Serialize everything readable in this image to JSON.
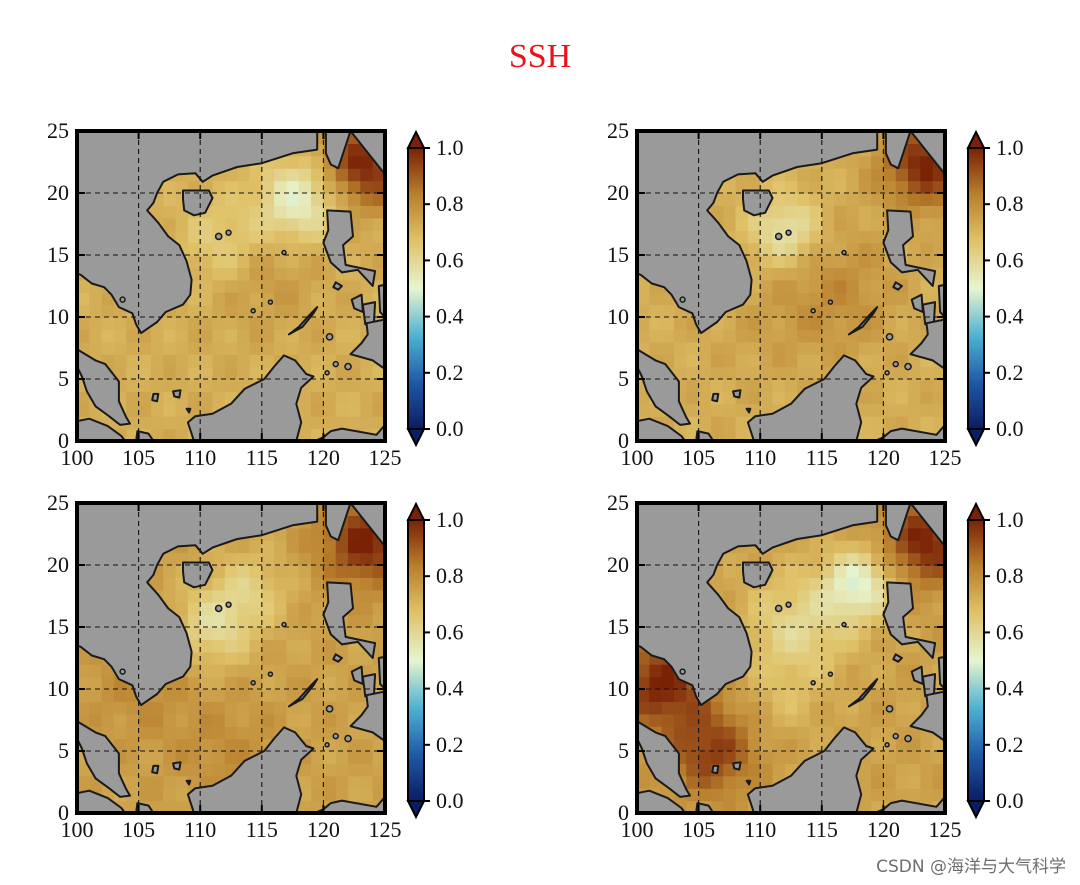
{
  "title": "SSH",
  "watermark": "CSDN @海洋与大气科学",
  "colors": {
    "title": "#e8141c",
    "land": "#9a9a9a",
    "coast": "#1a1a1a",
    "cmap": [
      "#0b1d63",
      "#1f5aa6",
      "#4fb3d3",
      "#e7f4cf",
      "#e0c36a",
      "#b9802e",
      "#7a2106"
    ]
  },
  "chart_data": [
    {
      "type": "heatmap",
      "panel": "top-left",
      "x_ticks": [
        "100",
        "105",
        "110",
        "115",
        "120",
        "125"
      ],
      "y_ticks": [
        "0",
        "5",
        "10",
        "15",
        "20",
        "25"
      ],
      "xlim": [
        100,
        125
      ],
      "ylim": [
        0,
        25
      ],
      "grid": true,
      "colorbar": {
        "ticks": [
          "0.0",
          "0.2",
          "0.4",
          "0.6",
          "0.8",
          "1.0"
        ],
        "range": [
          0,
          1
        ],
        "extend": "both"
      },
      "field_features": [
        {
          "lon": 118,
          "lat": 19.5,
          "value": 0.5,
          "sigma": 2.2
        },
        {
          "lon": 112,
          "lat": 16,
          "value": 0.62,
          "sigma": 2.5
        },
        {
          "lon": 123.5,
          "lat": 22.5,
          "value": 1.0,
          "sigma": 2.5
        },
        {
          "lon": 115,
          "lat": 13.5,
          "value": 0.78,
          "sigma": 3.0
        },
        {
          "lon": 108,
          "lat": 5,
          "value": 0.72,
          "sigma": 3.5
        }
      ],
      "base_value": 0.72
    },
    {
      "type": "heatmap",
      "panel": "top-right",
      "x_ticks": [
        "100",
        "105",
        "110",
        "115",
        "120",
        "125"
      ],
      "y_ticks": [
        "0",
        "5",
        "10",
        "15",
        "20",
        "25"
      ],
      "xlim": [
        100,
        125
      ],
      "ylim": [
        0,
        25
      ],
      "grid": true,
      "colorbar": {
        "ticks": [
          "0.0",
          "0.2",
          "0.4",
          "0.6",
          "0.8",
          "1.0"
        ],
        "range": [
          0,
          1
        ],
        "extend": "both"
      },
      "field_features": [
        {
          "lon": 112,
          "lat": 17,
          "value": 0.55,
          "sigma": 2.0
        },
        {
          "lon": 123.5,
          "lat": 22.5,
          "value": 1.0,
          "sigma": 2.5
        },
        {
          "lon": 116,
          "lat": 12,
          "value": 0.8,
          "sigma": 3.5
        },
        {
          "lon": 110,
          "lat": 9,
          "value": 0.74,
          "sigma": 3.0
        }
      ],
      "base_value": 0.72
    },
    {
      "type": "heatmap",
      "panel": "bottom-left",
      "x_ticks": [
        "100",
        "105",
        "110",
        "115",
        "120",
        "125"
      ],
      "y_ticks": [
        "0",
        "5",
        "10",
        "15",
        "20",
        "25"
      ],
      "xlim": [
        100,
        125
      ],
      "ylim": [
        0,
        25
      ],
      "grid": true,
      "colorbar": {
        "ticks": [
          "0.0",
          "0.2",
          "0.4",
          "0.6",
          "0.8",
          "1.0"
        ],
        "range": [
          0,
          1
        ],
        "extend": "both"
      },
      "field_features": [
        {
          "lon": 111,
          "lat": 15,
          "value": 0.6,
          "sigma": 2.2
        },
        {
          "lon": 114,
          "lat": 18,
          "value": 0.64,
          "sigma": 2.2
        },
        {
          "lon": 123.5,
          "lat": 22,
          "value": 1.0,
          "sigma": 2.5
        },
        {
          "lon": 112,
          "lat": 5,
          "value": 0.8,
          "sigma": 3.0
        },
        {
          "lon": 105,
          "lat": 10,
          "value": 0.8,
          "sigma": 3.0
        }
      ],
      "base_value": 0.75
    },
    {
      "type": "heatmap",
      "panel": "bottom-right",
      "x_ticks": [
        "100",
        "105",
        "110",
        "115",
        "120",
        "125"
      ],
      "y_ticks": [
        "0",
        "5",
        "10",
        "15",
        "20",
        "25"
      ],
      "xlim": [
        100,
        125
      ],
      "ylim": [
        0,
        25
      ],
      "grid": true,
      "colorbar": {
        "ticks": [
          "0.0",
          "0.2",
          "0.4",
          "0.6",
          "0.8",
          "1.0"
        ],
        "range": [
          0,
          1
        ],
        "extend": "both"
      },
      "field_features": [
        {
          "lon": 118,
          "lat": 18.5,
          "value": 0.5,
          "sigma": 2.0
        },
        {
          "lon": 113,
          "lat": 15,
          "value": 0.6,
          "sigma": 3.0
        },
        {
          "lon": 123.5,
          "lat": 22,
          "value": 1.0,
          "sigma": 2.5
        },
        {
          "lon": 102,
          "lat": 10.5,
          "value": 1.0,
          "sigma": 2.5
        },
        {
          "lon": 106,
          "lat": 5,
          "value": 0.95,
          "sigma": 2.5
        },
        {
          "lon": 112,
          "lat": 9,
          "value": 0.7,
          "sigma": 2.0
        }
      ],
      "base_value": 0.75
    }
  ]
}
